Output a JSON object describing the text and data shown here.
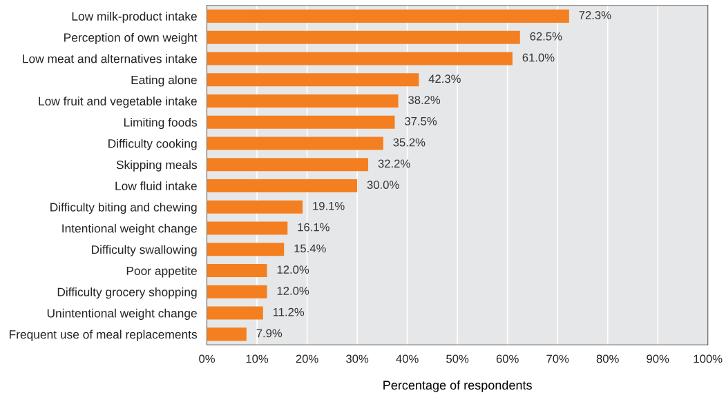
{
  "chart_data": {
    "type": "bar",
    "orientation": "horizontal",
    "xlabel": "Percentage of respondents",
    "categories": [
      "Low milk-product intake",
      "Perception of own weight",
      "Low meat and alternatives intake",
      "Eating alone",
      "Low fruit and vegetable intake",
      "Limiting foods",
      "Difficulty cooking",
      "Skipping meals",
      "Low fluid intake",
      "Difficulty biting and chewing",
      "Intentional weight change",
      "Difficulty swallowing",
      "Poor appetite",
      "Difficulty grocery shopping",
      "Unintentional weight change",
      "Frequent use of meal replacements"
    ],
    "values": [
      72.3,
      62.5,
      61.0,
      42.3,
      38.2,
      37.5,
      35.2,
      32.2,
      30.0,
      19.1,
      16.1,
      15.4,
      12.0,
      12.0,
      11.2,
      7.9
    ],
    "value_labels": [
      "72.3%",
      "62.5%",
      "61.0%",
      "42.3%",
      "38.2%",
      "37.5%",
      "35.2%",
      "32.2%",
      "30.0%",
      "19.1%",
      "16.1%",
      "15.4%",
      "12.0%",
      "12.0%",
      "11.2%",
      "7.9%"
    ],
    "color": "#f47f20",
    "xlim": [
      0,
      100
    ],
    "xticks": [
      {
        "value": 0,
        "label": "0%"
      },
      {
        "value": 10,
        "label": "10%"
      },
      {
        "value": 20,
        "label": "20%"
      },
      {
        "value": 30,
        "label": "30%"
      },
      {
        "value": 40,
        "label": "40%"
      },
      {
        "value": 50,
        "label": "50%"
      },
      {
        "value": 60,
        "label": "60%"
      },
      {
        "value": 70,
        "label": "70%"
      },
      {
        "value": 80,
        "label": "80%"
      },
      {
        "value": 90,
        "label": "90%"
      },
      {
        "value": 100,
        "label": "100%"
      }
    ],
    "grid": "x",
    "legend": false
  }
}
